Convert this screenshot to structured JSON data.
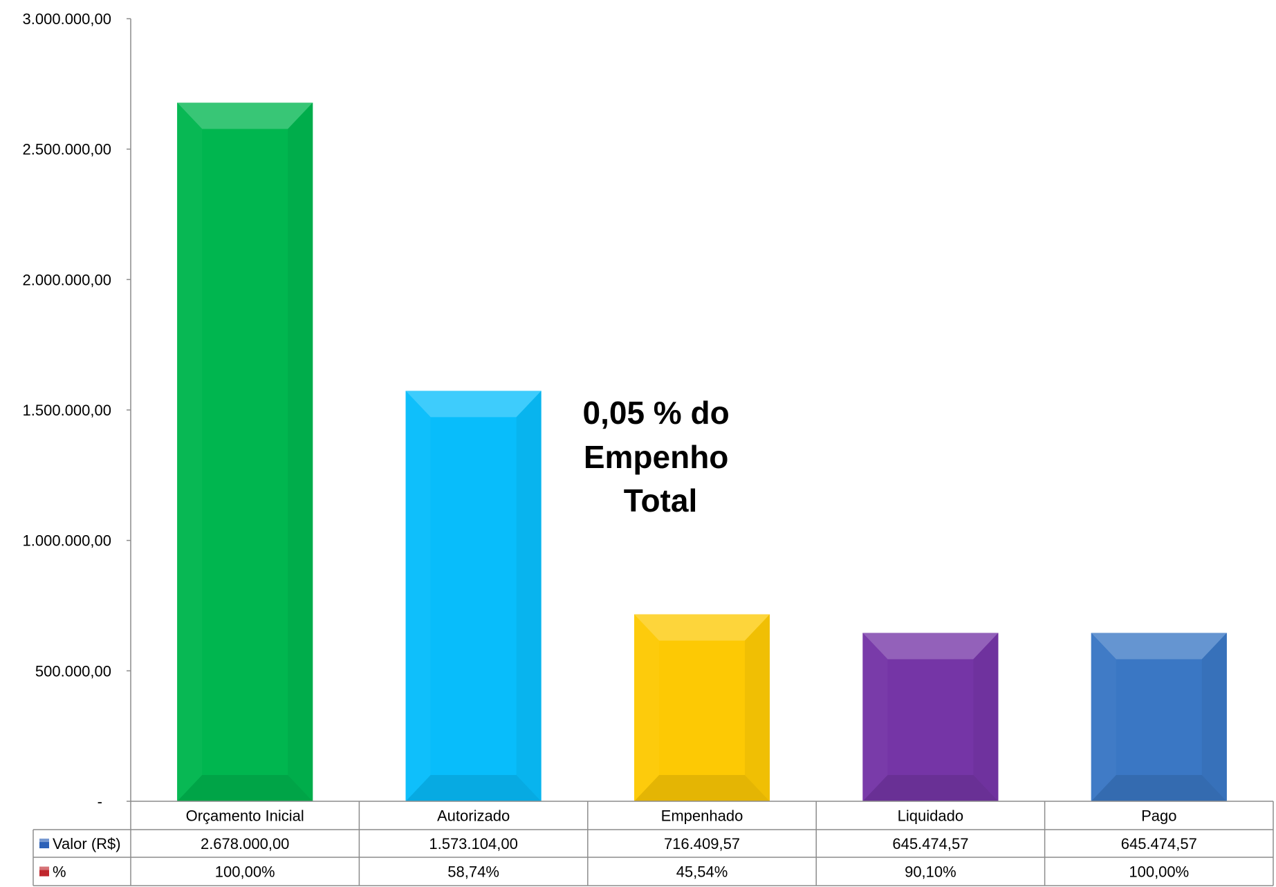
{
  "chart_data": {
    "type": "bar",
    "categories": [
      "Orçamento Inicial",
      "Autorizado",
      "Empenhado",
      "Liquidado",
      "Pago"
    ],
    "series": [
      {
        "name": "Valor (R$)",
        "values": [
          2678000.0,
          1573104.0,
          716409.57,
          645474.57,
          645474.57
        ],
        "display": [
          "2.678.000,00",
          "1.573.104,00",
          "716.409,57",
          "645.474,57",
          "645.474,57"
        ],
        "legend_color": "#2e62b8"
      },
      {
        "name": "%",
        "display": [
          "100,00%",
          "58,74%",
          "45,54%",
          "90,10%",
          "100,00%"
        ],
        "legend_color": "#c0272d"
      }
    ],
    "bar_colors": [
      "#00b64f",
      "#08bdfb",
      "#fdc904",
      "#7535a6",
      "#3a77c4"
    ],
    "ylim": [
      0,
      3000000
    ],
    "yticks": [
      {
        "value": 0,
        "label": "-"
      },
      {
        "value": 500000,
        "label": "500.000,00"
      },
      {
        "value": 1000000,
        "label": "1.000.000,00"
      },
      {
        "value": 1500000,
        "label": "1.500.000,00"
      },
      {
        "value": 2000000,
        "label": "2.000.000,00"
      },
      {
        "value": 2500000,
        "label": "2.500.000,00"
      },
      {
        "value": 3000000,
        "label": "3.000.000,00"
      }
    ],
    "grid": false,
    "legend": "data-table",
    "annotation": [
      "0,05 % do",
      "Empenho",
      "Total"
    ]
  }
}
